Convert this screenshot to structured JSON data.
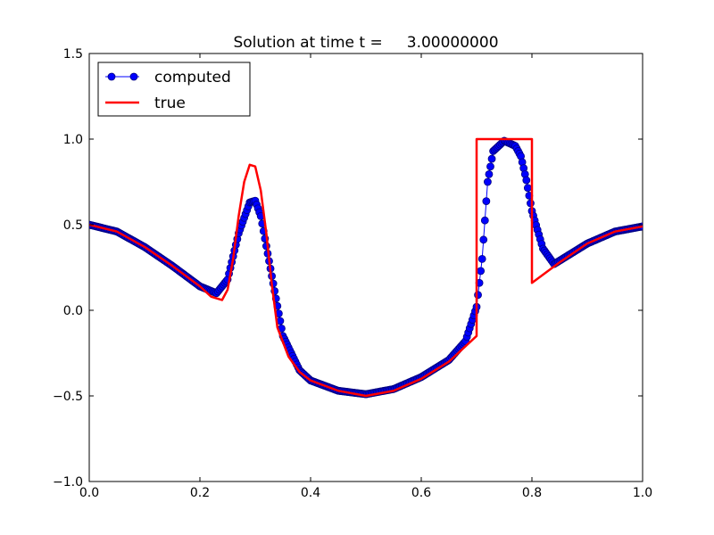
{
  "chart_data": {
    "type": "line",
    "title": "Solution at time t =     3.00000000",
    "xlabel": "",
    "ylabel": "",
    "xlim": [
      0.0,
      1.0
    ],
    "ylim": [
      -1.0,
      1.5
    ],
    "xticks": [
      "0.0",
      "0.2",
      "0.4",
      "0.6",
      "0.8",
      "1.0"
    ],
    "yticks": [
      "−1.0",
      "−0.5",
      "0.0",
      "0.5",
      "1.0",
      "1.5"
    ],
    "xtick_values": [
      0.0,
      0.2,
      0.4,
      0.6,
      0.8,
      1.0
    ],
    "ytick_values": [
      -1.0,
      -0.5,
      0.0,
      0.5,
      1.0,
      1.5
    ],
    "grid": false,
    "legend_position": "top-left",
    "series": [
      {
        "name": "computed",
        "color": "#0000ff",
        "marker_edge": "#000080",
        "style": "line-with-circle-markers",
        "x": [
          0.0,
          0.05,
          0.1,
          0.15,
          0.2,
          0.23,
          0.25,
          0.27,
          0.29,
          0.3,
          0.31,
          0.33,
          0.35,
          0.38,
          0.4,
          0.45,
          0.5,
          0.55,
          0.6,
          0.65,
          0.68,
          0.7,
          0.71,
          0.72,
          0.73,
          0.75,
          0.77,
          0.78,
          0.79,
          0.8,
          0.82,
          0.84,
          0.86,
          0.9,
          0.95,
          1.0
        ],
        "y": [
          0.5,
          0.46,
          0.37,
          0.26,
          0.14,
          0.1,
          0.18,
          0.45,
          0.63,
          0.64,
          0.55,
          0.2,
          -0.15,
          -0.35,
          -0.41,
          -0.47,
          -0.49,
          -0.46,
          -0.39,
          -0.29,
          -0.18,
          0.02,
          0.3,
          0.75,
          0.93,
          0.99,
          0.96,
          0.9,
          0.76,
          0.58,
          0.36,
          0.27,
          0.31,
          0.39,
          0.46,
          0.49
        ]
      },
      {
        "name": "true",
        "color": "#ff0000",
        "style": "line",
        "x": [
          0.0,
          0.05,
          0.1,
          0.15,
          0.2,
          0.22,
          0.24,
          0.25,
          0.26,
          0.27,
          0.28,
          0.29,
          0.3,
          0.31,
          0.32,
          0.33,
          0.34,
          0.36,
          0.38,
          0.4,
          0.45,
          0.5,
          0.55,
          0.6,
          0.65,
          0.7,
          0.7,
          0.8,
          0.8,
          0.85,
          0.9,
          0.95,
          1.0
        ],
        "y": [
          0.5,
          0.46,
          0.37,
          0.26,
          0.14,
          0.08,
          0.06,
          0.12,
          0.3,
          0.55,
          0.75,
          0.85,
          0.84,
          0.7,
          0.45,
          0.15,
          -0.1,
          -0.27,
          -0.36,
          -0.41,
          -0.47,
          -0.5,
          -0.47,
          -0.4,
          -0.3,
          -0.15,
          1.0,
          1.0,
          0.16,
          0.28,
          0.39,
          0.46,
          0.49
        ]
      }
    ]
  }
}
